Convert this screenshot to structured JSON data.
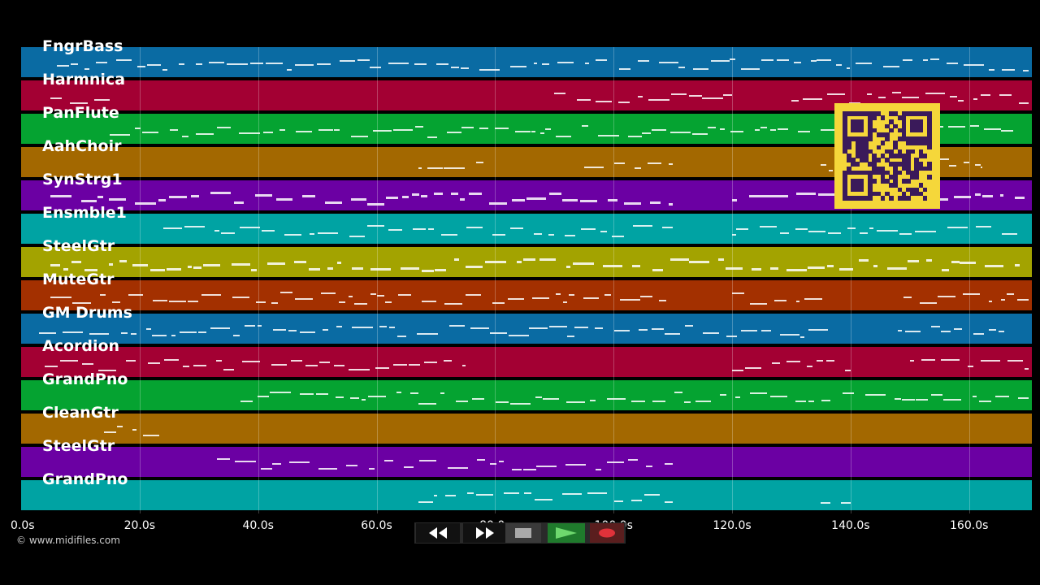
{
  "tracks": [
    {
      "name": "FngrBass",
      "color": "#0a6ba3"
    },
    {
      "name": "Harmnica",
      "color": "#a30033"
    },
    {
      "name": "PanFlute",
      "color": "#05a331"
    },
    {
      "name": "AahChoir",
      "color": "#a36800"
    },
    {
      "name": "SynStrg1",
      "color": "#6b00a3"
    },
    {
      "name": "Ensmble1",
      "color": "#00a3a3"
    },
    {
      "name": "SteelGtr",
      "color": "#a3a300"
    },
    {
      "name": "MuteGtr",
      "color": "#a33000"
    },
    {
      "name": "GM Drums",
      "color": "#0a6ba3"
    },
    {
      "name": "Acordion",
      "color": "#a30033"
    },
    {
      "name": "GrandPno",
      "color": "#05a331"
    },
    {
      "name": "CleanGtr",
      "color": "#a36800"
    },
    {
      "name": "SteelGtr",
      "color": "#6b00a3"
    },
    {
      "name": "GrandPno",
      "color": "#00a3a3"
    }
  ],
  "time_axis": {
    "ticks": [
      "0.0s",
      "20.0s",
      "40.0s",
      "60.0s",
      "80.0s",
      "100.0s",
      "120.0s",
      "140.0s",
      "160.0s"
    ],
    "max_seconds": 170.6
  },
  "copyright": "© www.midifiles.com",
  "controls": {
    "rewind_icon": "rewind-icon",
    "fast_forward_icon": "fast-forward-icon",
    "stop_icon": "stop-icon",
    "play_icon": "play-icon",
    "record_icon": "record-icon"
  },
  "qr_code": {
    "color": "#f5d73a",
    "ink": "#3a1a5a"
  }
}
